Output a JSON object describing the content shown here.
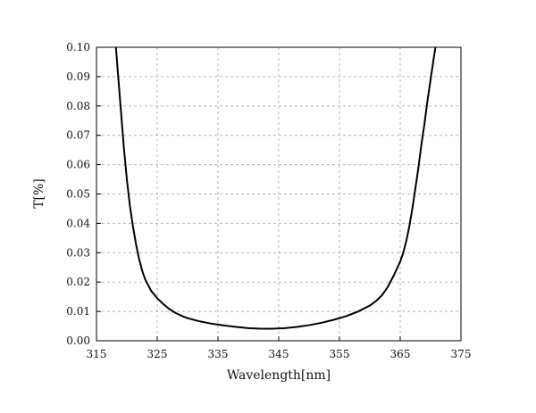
{
  "chart_data": {
    "type": "line",
    "title": "",
    "xlabel": "Wavelength[nm]",
    "ylabel": "T[%]",
    "xlim": [
      315,
      375
    ],
    "ylim": [
      0.0,
      0.1
    ],
    "x_ticks": [
      315,
      325,
      335,
      345,
      355,
      365,
      375
    ],
    "y_ticks": [
      0.0,
      0.01,
      0.02,
      0.03,
      0.04,
      0.05,
      0.06,
      0.07,
      0.08,
      0.09,
      0.1
    ],
    "x_tick_labels": [
      "315",
      "325",
      "335",
      "345",
      "355",
      "365",
      "375"
    ],
    "y_tick_labels": [
      "0.00",
      "0.01",
      "0.02",
      "0.03",
      "0.04",
      "0.05",
      "0.06",
      "0.07",
      "0.08",
      "0.09",
      "0.10"
    ],
    "grid": true,
    "series": [
      {
        "color": "#000000",
        "x": [
          318.2,
          318.5,
          319.0,
          319.5,
          320.0,
          320.5,
          321.0,
          321.5,
          322.0,
          322.5,
          323.0,
          323.5,
          324.0,
          325.0,
          326.0,
          327.0,
          328.0,
          329.0,
          330.0,
          332.0,
          334.0,
          336.0,
          338.0,
          340.0,
          342.0,
          344.0,
          346.0,
          348.0,
          350.0,
          352.0,
          354.0,
          356.0,
          358.0,
          360.0,
          361.0,
          362.0,
          363.0,
          364.0,
          365.0,
          365.5,
          366.0,
          366.5,
          367.0,
          367.5,
          368.0,
          368.5,
          369.0,
          369.5,
          370.0,
          370.5,
          370.8
        ],
        "y": [
          0.1,
          0.092,
          0.079,
          0.066,
          0.055,
          0.046,
          0.039,
          0.033,
          0.028,
          0.024,
          0.021,
          0.019,
          0.017,
          0.0145,
          0.0125,
          0.0108,
          0.0095,
          0.0085,
          0.0077,
          0.0066,
          0.0058,
          0.0052,
          0.0047,
          0.0043,
          0.0041,
          0.0041,
          0.0043,
          0.0047,
          0.0053,
          0.0061,
          0.0071,
          0.0083,
          0.0099,
          0.012,
          0.0135,
          0.0155,
          0.0185,
          0.0225,
          0.027,
          0.03,
          0.034,
          0.039,
          0.045,
          0.052,
          0.059,
          0.067,
          0.074,
          0.082,
          0.089,
          0.096,
          0.1
        ]
      }
    ]
  }
}
